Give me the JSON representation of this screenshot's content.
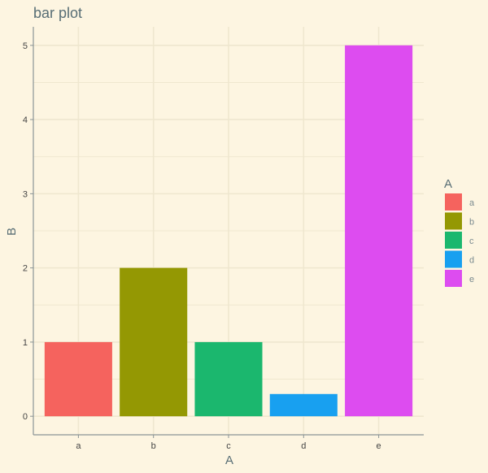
{
  "chart_data": {
    "type": "bar",
    "title": "bar plot",
    "xlabel": "A",
    "ylabel": "B",
    "categories": [
      "a",
      "b",
      "c",
      "d",
      "e"
    ],
    "values": [
      1,
      2,
      1,
      0.3,
      5
    ],
    "colors": [
      "#f8766d",
      "#a3a500",
      "#00bf7d",
      "#00b0f6",
      "#e76bf3"
    ],
    "bar_colors_display": [
      "#f5635e",
      "#949803",
      "#1bb76e",
      "#18a0f0",
      "#dd4cf0"
    ],
    "ylim": [
      -0.25,
      5.25
    ],
    "yticks": [
      0,
      1,
      2,
      3,
      4,
      5
    ],
    "grid": true,
    "legend": {
      "title": "A",
      "position": "right",
      "entries": [
        "a",
        "b",
        "c",
        "d",
        "e"
      ]
    },
    "colors_ui": {
      "background": "#fdf5e1",
      "grid": "#efe7cf",
      "axis": "#8a9496",
      "text": "#586e75"
    }
  }
}
